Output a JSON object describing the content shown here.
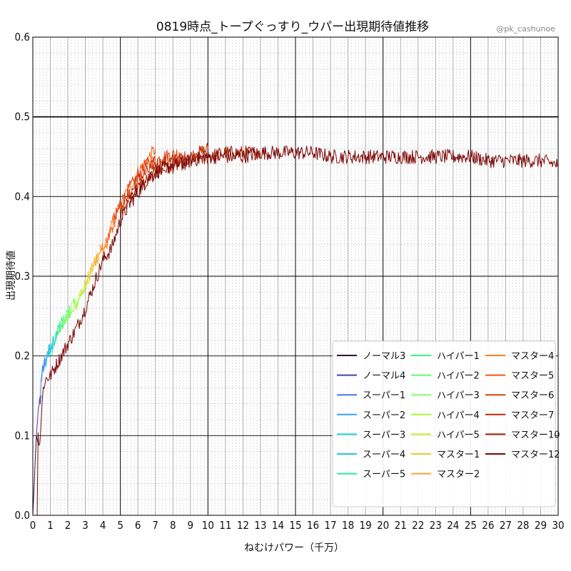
{
  "chart_data": {
    "type": "line",
    "title": "0819時点_トープぐっすり_ウパー出現期待値推移",
    "watermark": "@pk_cashunoe",
    "xlabel": "ねむけパワー（千万）",
    "ylabel": "出現期待値",
    "xlim": [
      0,
      30
    ],
    "ylim": [
      0,
      0.6
    ],
    "xticks": [
      0,
      1,
      2,
      3,
      4,
      5,
      6,
      7,
      8,
      9,
      10,
      11,
      12,
      13,
      14,
      15,
      16,
      17,
      18,
      19,
      20,
      21,
      22,
      23,
      24,
      25,
      26,
      27,
      28,
      29,
      30
    ],
    "yticks": [
      0.0,
      0.1,
      0.2,
      0.3,
      0.4,
      0.5,
      0.6
    ],
    "grid": true,
    "legend_position": "bottom-right",
    "series": [
      {
        "name": "ノーマル3",
        "color": "#30123b",
        "x": [
          0,
          0.2,
          0.3
        ],
        "y": [
          0.0,
          0.1,
          0.09
        ]
      },
      {
        "name": "ノーマル4",
        "color": "#4145ab",
        "x": [
          0.2,
          0.35,
          0.5
        ],
        "y": [
          0.1,
          0.14,
          0.15
        ]
      },
      {
        "name": "スーパー1",
        "color": "#4675ed",
        "x": [
          0.4,
          0.6,
          0.8
        ],
        "y": [
          0.15,
          0.19,
          0.2
        ]
      },
      {
        "name": "スーパー2",
        "color": "#39a2fc",
        "x": [
          0.5,
          0.8,
          1.0
        ],
        "y": [
          0.17,
          0.2,
          0.21
        ]
      },
      {
        "name": "スーパー3",
        "color": "#1bcfd4",
        "x": [
          0.7,
          1.0,
          1.2
        ],
        "y": [
          0.19,
          0.21,
          0.22
        ]
      },
      {
        "name": "スーパー4",
        "color": "#1fc9dd",
        "x": [
          0.9,
          1.2,
          1.4
        ],
        "y": [
          0.2,
          0.22,
          0.23
        ]
      },
      {
        "name": "スーパー5",
        "color": "#24eca6",
        "x": [
          1.1,
          1.4,
          1.6
        ],
        "y": [
          0.21,
          0.23,
          0.24
        ]
      },
      {
        "name": "ハイパー1",
        "color": "#3ef08c",
        "x": [
          1.3,
          1.6,
          1.8
        ],
        "y": [
          0.22,
          0.24,
          0.245
        ]
      },
      {
        "name": "ハイパー2",
        "color": "#61fc6c",
        "x": [
          1.5,
          1.9,
          2.2
        ],
        "y": [
          0.23,
          0.25,
          0.26
        ]
      },
      {
        "name": "ハイパー3",
        "color": "#86fe6a",
        "x": [
          1.8,
          2.2,
          2.6
        ],
        "y": [
          0.24,
          0.26,
          0.27
        ]
      },
      {
        "name": "ハイパー4",
        "color": "#a4fc3b",
        "x": [
          2.2,
          2.6,
          3.0
        ],
        "y": [
          0.25,
          0.27,
          0.29
        ]
      },
      {
        "name": "ハイパー5",
        "color": "#d1e834",
        "x": [
          2.6,
          3.0,
          3.4
        ],
        "y": [
          0.27,
          0.29,
          0.31
        ]
      },
      {
        "name": "マスター1",
        "color": "#f3c63a",
        "x": [
          3.0,
          3.4,
          3.8
        ],
        "y": [
          0.29,
          0.31,
          0.33
        ]
      },
      {
        "name": "マスター2",
        "color": "#fea331",
        "x": [
          3.4,
          3.8,
          4.2
        ],
        "y": [
          0.31,
          0.33,
          0.34
        ]
      },
      {
        "name": "マスター4",
        "color": "#fb8022",
        "x": [
          3.8,
          4.2,
          4.6
        ],
        "y": [
          0.33,
          0.34,
          0.37
        ]
      },
      {
        "name": "マスター5",
        "color": "#f05b12",
        "x": [
          4.2,
          5.0,
          6.0,
          7.0
        ],
        "y": [
          0.34,
          0.39,
          0.43,
          0.46
        ]
      },
      {
        "name": "マスター6",
        "color": "#dc3c07",
        "x": [
          4.6,
          5.5,
          6.5,
          7.5,
          8.5
        ],
        "y": [
          0.37,
          0.41,
          0.44,
          0.45,
          0.455
        ]
      },
      {
        "name": "マスター7",
        "color": "#bf2a03",
        "x": [
          5.0,
          6.0,
          7.0,
          8.0,
          9.0,
          10.0
        ],
        "y": [
          0.38,
          0.42,
          0.44,
          0.445,
          0.45,
          0.46
        ]
      },
      {
        "name": "マスター10",
        "color": "#9e1a01",
        "x": [
          5.5,
          7.0,
          9.0,
          11.0,
          13.0
        ],
        "y": [
          0.4,
          0.43,
          0.445,
          0.455,
          0.455
        ]
      },
      {
        "name": "マスター12",
        "color": "#7a0403",
        "x": [
          0.0,
          0.25,
          0.3,
          0.4,
          0.5,
          0.6,
          0.7,
          1.0,
          1.5,
          2.0,
          2.5,
          3.0,
          3.5,
          4.0,
          4.5,
          5.0,
          5.5,
          6.0,
          6.5,
          7.0,
          7.5,
          8.0,
          8.5,
          9.0,
          10.0,
          11.0,
          12.0,
          13.0,
          14.0,
          15.0,
          16.0,
          17.0,
          18.0,
          19.0,
          20.0,
          21.0,
          22.0,
          23.0,
          24.0,
          25.0,
          26.0,
          27.0,
          28.0,
          29.0,
          30.0
        ],
        "y": [
          0.0,
          0.0,
          0.1,
          0.09,
          0.13,
          0.16,
          0.17,
          0.175,
          0.195,
          0.215,
          0.235,
          0.26,
          0.29,
          0.32,
          0.335,
          0.37,
          0.39,
          0.405,
          0.42,
          0.43,
          0.435,
          0.44,
          0.44,
          0.445,
          0.45,
          0.45,
          0.45,
          0.455,
          0.455,
          0.455,
          0.455,
          0.45,
          0.45,
          0.45,
          0.45,
          0.45,
          0.45,
          0.45,
          0.45,
          0.45,
          0.445,
          0.445,
          0.445,
          0.445,
          0.44
        ]
      }
    ]
  }
}
